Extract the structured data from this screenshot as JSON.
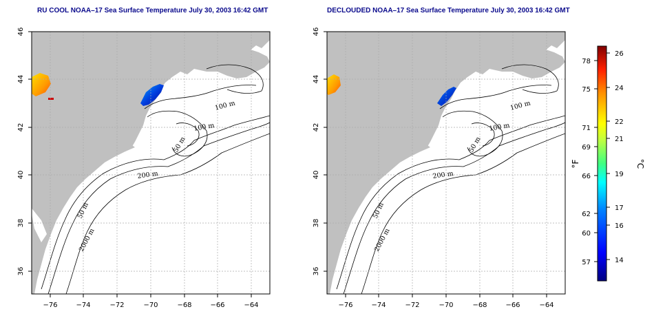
{
  "panels": [
    {
      "id": "left",
      "title": "RU COOL NOAA–17 Sea Surface Temperature July 30, 2003 16:42 GMT"
    },
    {
      "id": "right",
      "title": "DECLOUDED NOAA–17 Sea Surface Temperature July 30, 2003 16:42 GMT"
    }
  ],
  "axes": {
    "x_ticks": [
      "−76",
      "−74",
      "−72",
      "−70",
      "−68",
      "−66",
      "−64"
    ],
    "y_ticks": [
      "36",
      "38",
      "40",
      "42",
      "44",
      "46"
    ]
  },
  "contour_labels": [
    "100 m",
    "100 m",
    "50 m",
    "200 m",
    "50 m",
    "2000 m"
  ],
  "colorbar": {
    "f_ticks": [
      "78",
      "75",
      "71",
      "69",
      "66",
      "62",
      "60",
      "57"
    ],
    "c_ticks": [
      "26",
      "24",
      "22",
      "21",
      "19",
      "17",
      "16",
      "14"
    ],
    "f_unit": "°F",
    "c_unit": "°C"
  },
  "colors": {
    "land": "#c0c0c0",
    "ocean": "#ffffff",
    "title": "#0a0a8c",
    "grid": "#aaaaaa",
    "cold": "#1a22c8",
    "warm": "#ff7a00"
  }
}
